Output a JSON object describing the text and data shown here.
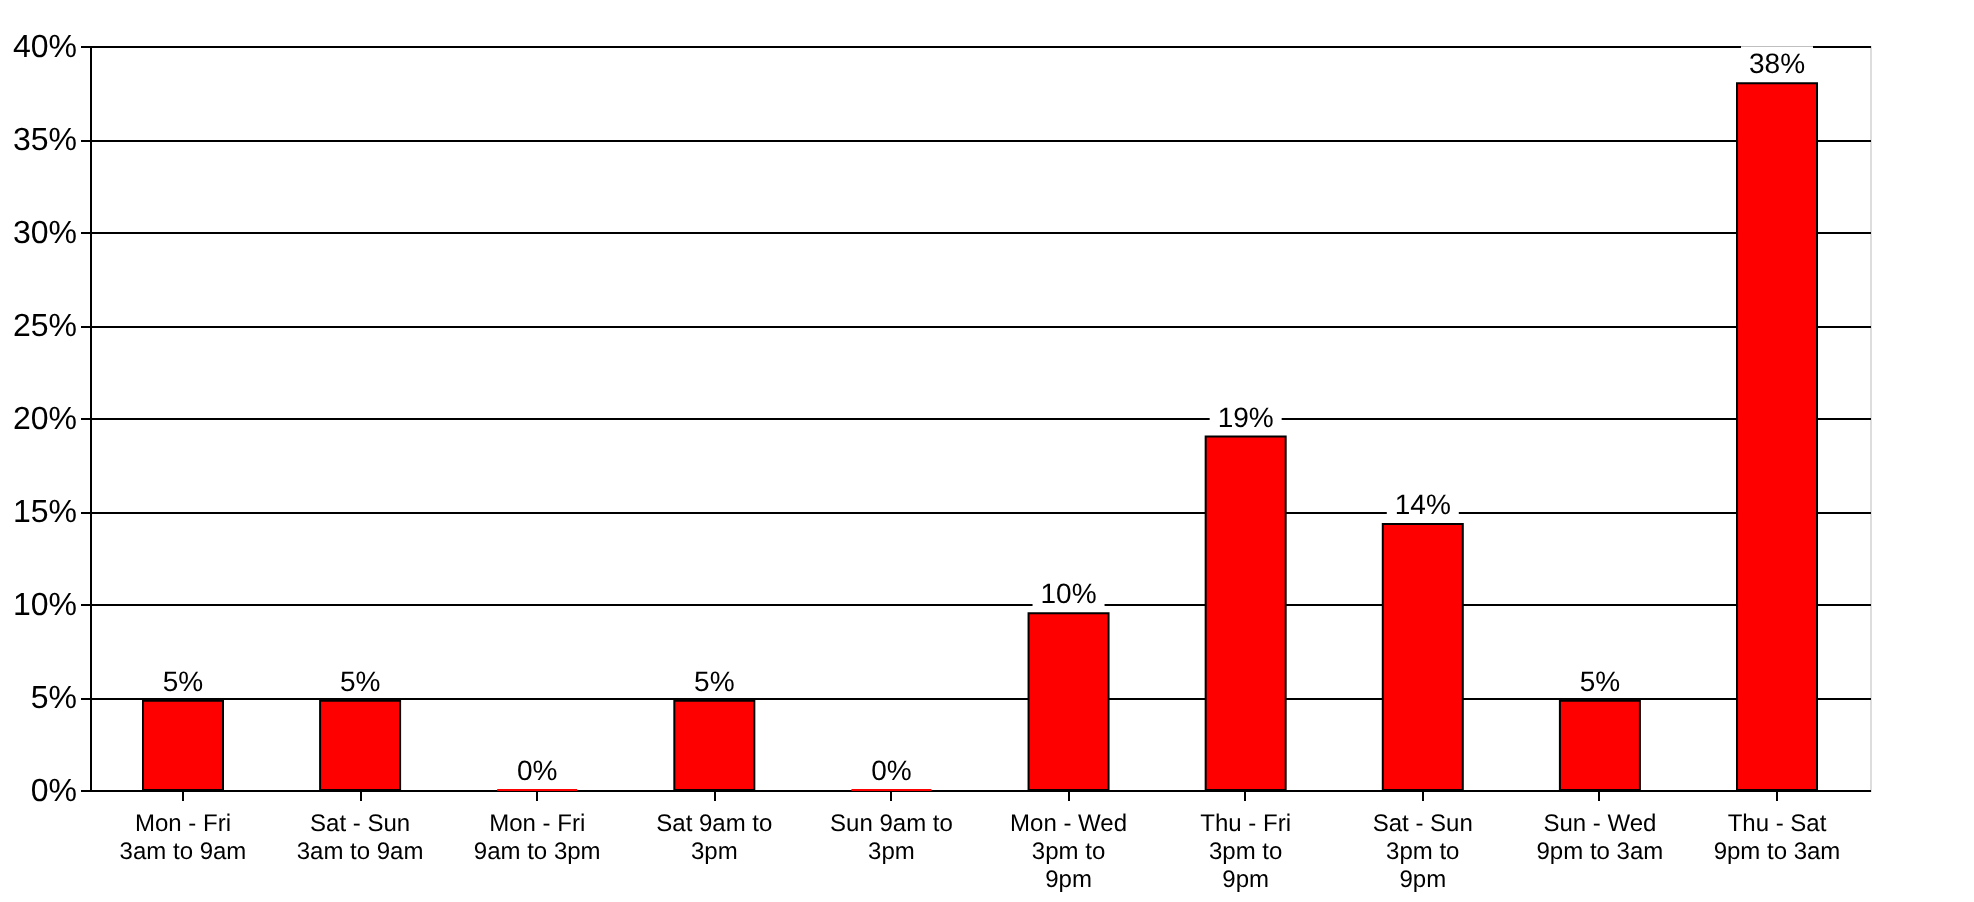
{
  "chart_data": {
    "type": "bar",
    "categories": [
      "Mon - Fri\n3am to 9am",
      "Sat - Sun\n3am to 9am",
      "Mon - Fri\n9am to 3pm",
      "Sat  9am to\n3pm",
      "Sun  9am to\n3pm",
      "Mon - Wed\n3pm to\n9pm",
      "Thu - Fri\n3pm to\n9pm",
      "Sat - Sun\n3pm to\n9pm",
      "Sun - Wed\n9pm to 3am",
      "Thu - Sat\n9pm to 3am"
    ],
    "values": [
      4.8,
      4.8,
      0,
      4.8,
      0,
      9.5,
      19,
      14.3,
      4.8,
      38
    ],
    "value_labels": [
      "5%",
      "5%",
      "0%",
      "5%",
      "0%",
      "10%",
      "19%",
      "14%",
      "5%",
      "38%"
    ],
    "color": "#ff0000",
    "ylim": [
      0,
      40
    ],
    "yticks": [
      {
        "value": 0,
        "label": "0%"
      },
      {
        "value": 5,
        "label": "5%"
      },
      {
        "value": 10,
        "label": "10%"
      },
      {
        "value": 15,
        "label": "15%"
      },
      {
        "value": 20,
        "label": "20%"
      },
      {
        "value": 25,
        "label": "25%"
      },
      {
        "value": 30,
        "label": "30%"
      },
      {
        "value": 35,
        "label": "35%"
      },
      {
        "value": 40,
        "label": "40%"
      }
    ],
    "grid": "y"
  }
}
